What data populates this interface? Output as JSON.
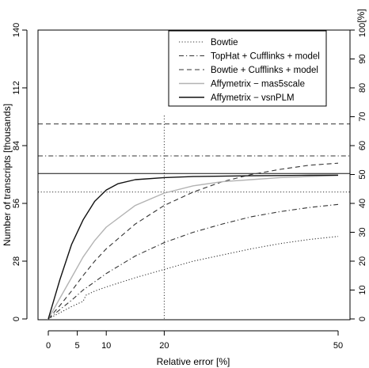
{
  "chart_data": {
    "type": "line",
    "xlabel": "Relative error [%]",
    "ylabel": "Number of transcripts [thousands]",
    "y2label": "[%]",
    "xlim": [
      0,
      50
    ],
    "ylim": [
      0,
      140
    ],
    "y2lim": [
      0,
      100
    ],
    "xticks": [
      0,
      5,
      10,
      20,
      50
    ],
    "yticks": [
      0,
      28,
      56,
      84,
      112,
      140
    ],
    "y2ticks": [
      0,
      10,
      20,
      30,
      40,
      50,
      60,
      70,
      80,
      90,
      100
    ],
    "legend_position": "top-right",
    "vline_x": 20,
    "series": [
      {
        "name": "Bowtie",
        "dash": "dotted",
        "color": "#333333",
        "x": [
          0,
          2,
          4,
          6,
          6.5,
          8,
          10,
          15,
          20,
          25,
          30,
          35,
          40,
          45,
          50
        ],
        "y": [
          0,
          3,
          6,
          8.5,
          11.5,
          13.5,
          15.5,
          20,
          24,
          28,
          31,
          34,
          36.5,
          38.5,
          40
        ],
        "asymptote": 61.5
      },
      {
        "name": "TopHat + Cufflinks + model",
        "dash": "dashdot",
        "color": "#333333",
        "x": [
          0,
          2,
          4,
          6,
          8,
          10,
          15,
          20,
          25,
          30,
          35,
          40,
          45,
          50
        ],
        "y": [
          0,
          4.5,
          9,
          14,
          18,
          22,
          30.5,
          37,
          42,
          46,
          49.5,
          52,
          54,
          55.5
        ],
        "asymptote": 79
      },
      {
        "name": "Bowtie + Cufflinks + model",
        "dash": "dashed",
        "color": "#333333",
        "x": [
          0,
          2,
          4,
          6,
          8,
          10,
          15,
          20,
          25,
          30,
          35,
          40,
          45,
          50
        ],
        "y": [
          0,
          6.5,
          13.5,
          21,
          28,
          34,
          46,
          55,
          61.5,
          66.5,
          70,
          72.5,
          74.5,
          75.5
        ],
        "asymptote": 94.5
      },
      {
        "name": "Affymetrix − mas5scale",
        "dash": "solid",
        "color": "#b3b3b3",
        "x": [
          0,
          2,
          4,
          6,
          8,
          10,
          15,
          20,
          25,
          30,
          35,
          40,
          45,
          50
        ],
        "y": [
          0,
          10,
          20,
          30,
          38,
          44.5,
          55,
          61,
          64.5,
          66.5,
          67.5,
          68.5,
          69,
          69.5
        ],
        "asymptote": null
      },
      {
        "name": "Affymetrix − vsnPLM",
        "dash": "solid",
        "color": "#111111",
        "x": [
          0,
          2,
          4,
          6,
          8,
          10,
          12,
          15,
          20,
          25,
          30,
          35,
          40,
          45,
          50
        ],
        "y": [
          0,
          19,
          36,
          48,
          57,
          62.5,
          65.5,
          67.5,
          68.5,
          69,
          69.2,
          69.4,
          69.5,
          69.6,
          69.7
        ],
        "asymptote": 70.5
      }
    ]
  }
}
